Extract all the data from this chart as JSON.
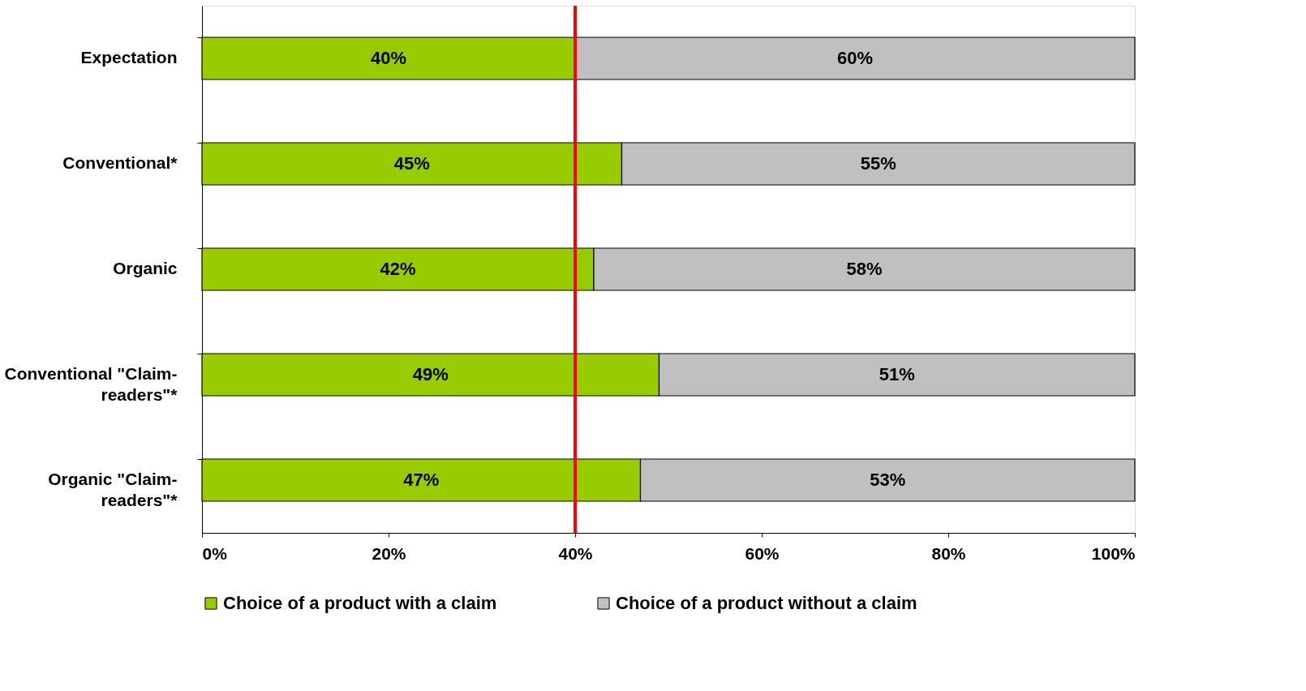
{
  "chart_data": {
    "type": "bar",
    "orientation": "horizontal",
    "stacked": true,
    "categories": [
      "Expectation",
      "Conventional*",
      "Organic",
      "Conventional \"Claim-readers\"*",
      "Organic \"Claim-readers\"*"
    ],
    "series": [
      {
        "name": "Choice of a product with a claim",
        "color": "#99cc00",
        "values": [
          40,
          45,
          42,
          49,
          47
        ],
        "value_labels": [
          "40%",
          "45%",
          "42%",
          "49%",
          "47%"
        ]
      },
      {
        "name": "Choice of a product without a claim",
        "color": "#c0c0c0",
        "values": [
          60,
          55,
          58,
          51,
          53
        ],
        "value_labels": [
          "60%",
          "55%",
          "58%",
          "51%",
          "53%"
        ]
      }
    ],
    "xlim": [
      0,
      100
    ],
    "xticks": [
      {
        "value": 0,
        "label": "0%"
      },
      {
        "value": 20,
        "label": "20%"
      },
      {
        "value": 40,
        "label": "40%"
      },
      {
        "value": 60,
        "label": "60%"
      },
      {
        "value": 80,
        "label": "80%"
      },
      {
        "value": 100,
        "label": "100%"
      }
    ],
    "ref_lines": [
      {
        "axis": "x",
        "value": 40,
        "color": "#ff0000"
      }
    ],
    "grid": false,
    "legend": "bottom"
  }
}
